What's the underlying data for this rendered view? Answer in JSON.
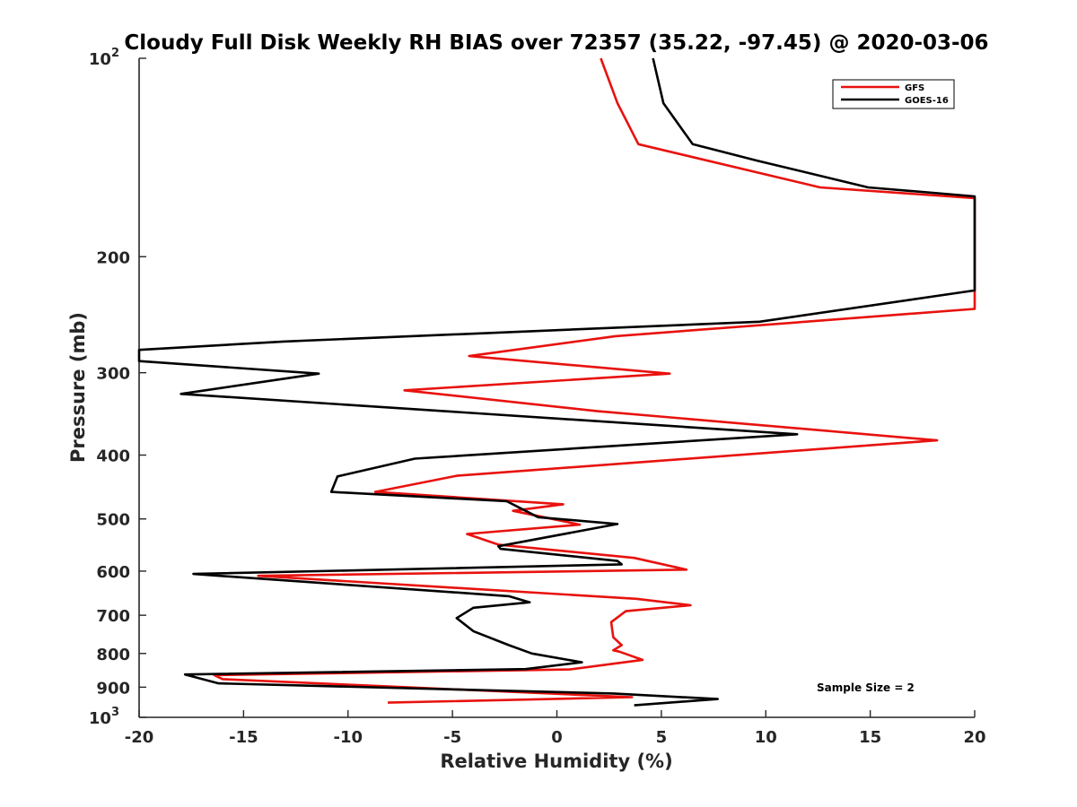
{
  "chart_data": {
    "type": "line",
    "title": "Cloudy Full Disk Weekly RH BIAS over 72357 (35.22, -97.45) @ 2020-03-06",
    "xlabel": "Relative Humidity (%)",
    "ylabel": "Pressure (mb)",
    "xlim": [
      -20,
      20
    ],
    "ylim": [
      1000,
      100
    ],
    "yscale": "log",
    "xticks": [
      -20,
      -15,
      -10,
      -5,
      0,
      5,
      10,
      15,
      20
    ],
    "xtick_labels": [
      "-20",
      "-15",
      "-10",
      "-5",
      "0",
      "5",
      "10",
      "15",
      "20"
    ],
    "yticks": [
      100,
      200,
      300,
      400,
      500,
      600,
      700,
      800,
      900,
      1000
    ],
    "ytick_labels": [
      {
        "base": "10",
        "exp": "2"
      },
      {
        "base": "200",
        "exp": ""
      },
      {
        "base": "300",
        "exp": ""
      },
      {
        "base": "400",
        "exp": ""
      },
      {
        "base": "500",
        "exp": ""
      },
      {
        "base": "600",
        "exp": ""
      },
      {
        "base": "700",
        "exp": ""
      },
      {
        "base": "800",
        "exp": ""
      },
      {
        "base": "900",
        "exp": ""
      },
      {
        "base": "10",
        "exp": "3"
      }
    ],
    "grid": false,
    "legend": "top-right",
    "annotations": [
      {
        "text": "Sample Size = 2"
      }
    ],
    "series": [
      {
        "name": "GFS",
        "color": "#e8120e",
        "points": [
          [
            2.1,
            100
          ],
          [
            2.9,
            117
          ],
          [
            3.9,
            135
          ],
          [
            12.6,
            157
          ],
          [
            20.0,
            163
          ],
          [
            20.0,
            240
          ],
          [
            2.8,
            264
          ],
          [
            -4.2,
            283
          ],
          [
            5.4,
            301
          ],
          [
            -7.3,
            319
          ],
          [
            1.9,
            343
          ],
          [
            18.2,
            380
          ],
          [
            -4.8,
            430
          ],
          [
            -8.7,
            455
          ],
          [
            0.3,
            475
          ],
          [
            -2.1,
            486
          ],
          [
            1.1,
            510
          ],
          [
            -4.3,
            527
          ],
          [
            -2.8,
            547
          ],
          [
            3.7,
            573
          ],
          [
            6.2,
            597
          ],
          [
            -14.3,
            610
          ],
          [
            3.8,
            661
          ],
          [
            6.4,
            676
          ],
          [
            3.3,
            690
          ],
          [
            2.6,
            717
          ],
          [
            2.7,
            756
          ],
          [
            3.1,
            777
          ],
          [
            2.7,
            791
          ],
          [
            3.0,
            795
          ],
          [
            4.1,
            818
          ],
          [
            0.6,
            846
          ],
          [
            -16.4,
            863
          ],
          [
            -16.0,
            875
          ],
          [
            3.6,
            932
          ],
          [
            -8.1,
            950
          ]
        ]
      },
      {
        "name": "GOES-16",
        "color": "#000000",
        "points": [
          [
            4.6,
            100
          ],
          [
            5.1,
            117
          ],
          [
            6.5,
            135
          ],
          [
            9.6,
            143
          ],
          [
            14.9,
            157
          ],
          [
            20.0,
            162
          ],
          [
            20.0,
            225
          ],
          [
            9.7,
            251
          ],
          [
            -13.1,
            269
          ],
          [
            -20.0,
            277
          ],
          [
            -20.0,
            288
          ],
          [
            -11.4,
            301
          ],
          [
            -18.0,
            323
          ],
          [
            11.5,
            372
          ],
          [
            -6.8,
            405
          ],
          [
            -10.5,
            431
          ],
          [
            -10.8,
            455
          ],
          [
            -2.4,
            470
          ],
          [
            -0.9,
            497
          ],
          [
            2.9,
            509
          ],
          [
            -2.8,
            550
          ],
          [
            -2.7,
            555
          ],
          [
            2.9,
            579
          ],
          [
            3.1,
            586
          ],
          [
            -17.4,
            606
          ],
          [
            -2.3,
            655
          ],
          [
            -1.3,
            669
          ],
          [
            -4.0,
            682
          ],
          [
            -4.8,
            707
          ],
          [
            -4.0,
            740
          ],
          [
            -2.3,
            777
          ],
          [
            -1.2,
            800
          ],
          [
            1.2,
            825
          ],
          [
            -1.5,
            845
          ],
          [
            -17.8,
            861
          ],
          [
            -16.2,
            888
          ],
          [
            2.7,
            920
          ],
          [
            7.7,
            938
          ],
          [
            3.7,
            959
          ]
        ]
      }
    ]
  }
}
